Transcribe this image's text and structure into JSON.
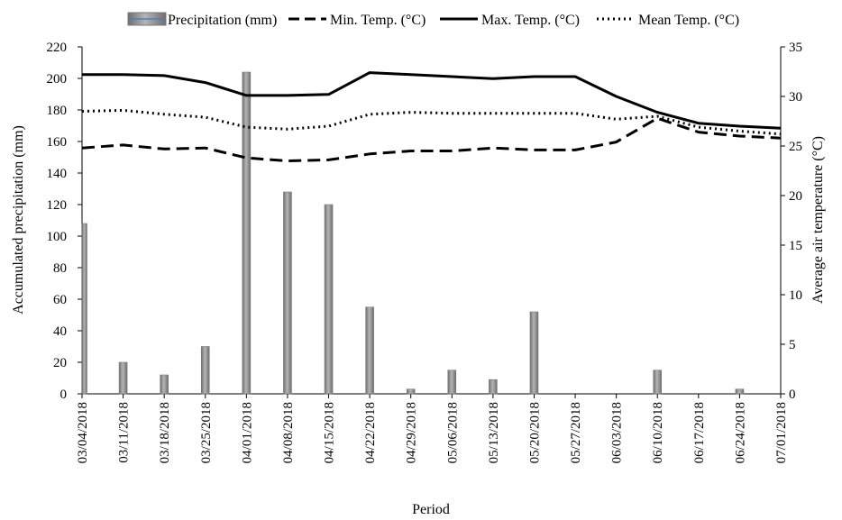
{
  "chart_data": {
    "type": "bar+line",
    "x": [
      "03/04/2018",
      "03/11/2018",
      "03/18/2018",
      "03/25/2018",
      "04/01/2018",
      "04/08/2018",
      "04/15/2018",
      "04/22/2018",
      "04/29/2018",
      "05/06/2018",
      "05/13/2018",
      "05/20/2018",
      "05/27/2018",
      "06/03/2018",
      "06/10/2018",
      "06/17/2018",
      "06/24/2018",
      "07/01/2018"
    ],
    "xlabel": "Period",
    "ylabel_left": "Accumulated precipitation (mm)",
    "ylabel_right": "Average air temperature (°C)",
    "ylim_left": [
      0,
      220
    ],
    "yticks_left": [
      "0",
      "20",
      "40",
      "60",
      "80",
      "100",
      "120",
      "140",
      "160",
      "180",
      "200",
      "220"
    ],
    "ylim_right": [
      0,
      35
    ],
    "yticks_right": [
      "0",
      "5",
      "10",
      "15",
      "20",
      "25",
      "30",
      "35"
    ],
    "legend_position": "top",
    "bars": {
      "name": "Precipitation (mm)",
      "color": "#8c8c8c",
      "values": [
        108,
        20,
        12,
        30,
        204,
        128,
        120,
        55,
        3,
        15,
        9,
        52,
        0,
        0,
        15,
        0,
        3,
        0
      ]
    },
    "series": [
      {
        "name": "Min. Temp. (°C)",
        "style": "dashed",
        "color": "#000000",
        "values": [
          24.8,
          25.1,
          24.7,
          24.8,
          23.8,
          23.5,
          23.6,
          24.2,
          24.5,
          24.5,
          24.8,
          24.6,
          24.6,
          25.4,
          27.8,
          26.4,
          26.0,
          25.8
        ]
      },
      {
        "name": "Max. Temp. (°C)",
        "style": "solid",
        "color": "#000000",
        "values": [
          32.2,
          32.2,
          32.1,
          31.4,
          30.1,
          30.1,
          30.2,
          32.4,
          32.2,
          32.0,
          31.8,
          32.0,
          32.0,
          30.0,
          28.4,
          27.3,
          27.0,
          26.8
        ]
      },
      {
        "name": "Mean Temp. (°C)",
        "style": "dotted",
        "color": "#000000",
        "values": [
          28.5,
          28.6,
          28.2,
          27.9,
          26.9,
          26.7,
          27.0,
          28.2,
          28.4,
          28.3,
          28.3,
          28.3,
          28.3,
          27.7,
          28.0,
          26.9,
          26.5,
          26.2
        ]
      }
    ]
  }
}
